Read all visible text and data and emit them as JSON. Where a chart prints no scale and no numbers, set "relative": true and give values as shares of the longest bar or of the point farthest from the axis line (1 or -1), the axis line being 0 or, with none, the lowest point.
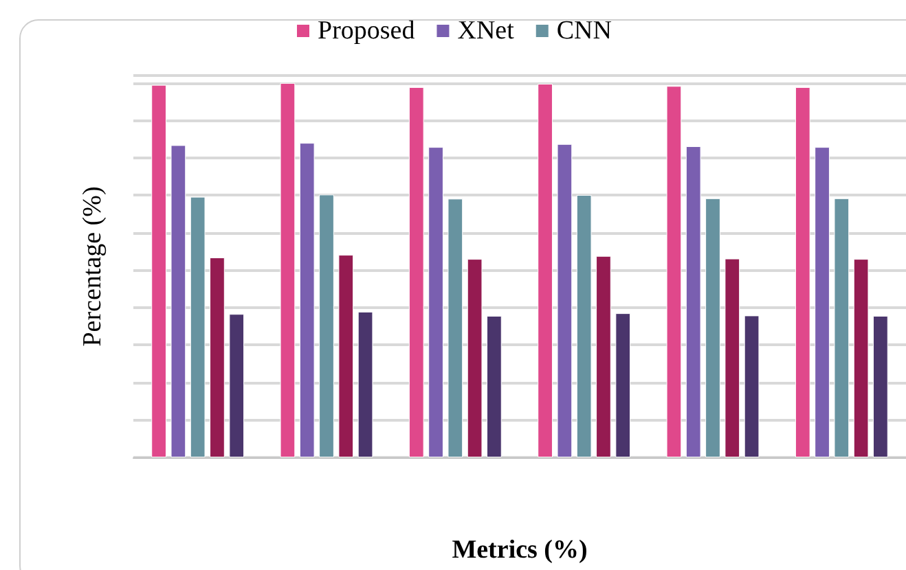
{
  "chart_data": {
    "type": "bar",
    "relative": true,
    "xlabel": "Metrics (%)",
    "ylabel": "Percentage (%)",
    "categories": [
      null,
      null,
      null,
      null,
      null,
      null
    ],
    "series": [
      {
        "name": "Proposed",
        "color": "#e0488b",
        "values": [
          0.995,
          1,
          0.989,
          0.998,
          0.992,
          0.989
        ]
      },
      {
        "name": "XNet",
        "color": "#7a5fb0",
        "values": [
          0.834,
          0.84,
          0.829,
          0.837,
          0.831,
          0.829
        ]
      },
      {
        "name": "CNN",
        "color": "#6793a0",
        "values": [
          0.696,
          0.702,
          0.691,
          0.701,
          0.692,
          0.692
        ]
      },
      {
        "color": "#951b51",
        "values": [
          0.534,
          0.541,
          0.53,
          0.538,
          0.531,
          0.53
        ]
      },
      {
        "color": "#4a356c",
        "values": [
          0.383,
          0.389,
          0.378,
          0.385,
          0.379,
          0.378
        ]
      }
    ],
    "grid": "y",
    "legend": "top"
  }
}
